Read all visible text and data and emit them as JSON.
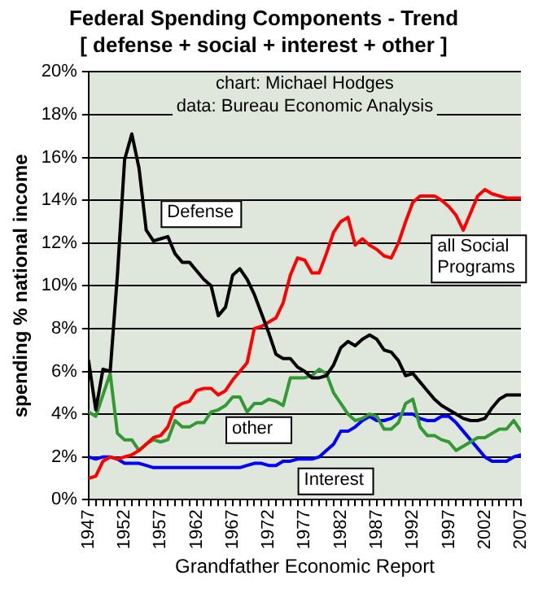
{
  "chart_data": {
    "type": "line",
    "title": "Federal Spending Components - Trend",
    "subtitle": "[ defense + social + interest + other ]",
    "xlabel": "Grandfather Economic Report",
    "ylabel": "spending % national income",
    "annotations": [
      "chart: Michael Hodges",
      "data: Bureau Economic Analysis"
    ],
    "x": [
      1947,
      1948,
      1949,
      1950,
      1951,
      1952,
      1953,
      1954,
      1955,
      1956,
      1957,
      1958,
      1959,
      1960,
      1961,
      1962,
      1963,
      1964,
      1965,
      1966,
      1967,
      1968,
      1969,
      1970,
      1971,
      1972,
      1973,
      1974,
      1975,
      1976,
      1977,
      1978,
      1979,
      1980,
      1981,
      1982,
      1983,
      1984,
      1985,
      1986,
      1987,
      1988,
      1989,
      1990,
      1991,
      1992,
      1993,
      1994,
      1995,
      1996,
      1997,
      1998,
      1999,
      2000,
      2001,
      2002,
      2003,
      2004,
      2005,
      2006,
      2007
    ],
    "series": [
      {
        "name": "Defense",
        "color": "#000000",
        "values": [
          6.5,
          4.2,
          6.1,
          6.0,
          10.5,
          15.9,
          17.1,
          15.5,
          12.6,
          12.1,
          12.2,
          12.3,
          11.5,
          11.1,
          11.1,
          10.7,
          10.3,
          10.0,
          8.6,
          9.0,
          10.5,
          10.8,
          10.3,
          9.6,
          8.7,
          7.8,
          6.8,
          6.6,
          6.6,
          6.2,
          6.0,
          5.7,
          5.7,
          5.8,
          6.3,
          7.1,
          7.4,
          7.2,
          7.5,
          7.7,
          7.5,
          7.0,
          6.9,
          6.5,
          5.8,
          5.9,
          5.5,
          5.1,
          4.7,
          4.4,
          4.2,
          4.0,
          3.8,
          3.7,
          3.7,
          3.8,
          4.3,
          4.7,
          4.9,
          4.9,
          4.9
        ]
      },
      {
        "name": "all Social Programs",
        "color": "#ff0000",
        "values": [
          1.0,
          1.1,
          1.8,
          2.0,
          1.9,
          2.0,
          2.1,
          2.3,
          2.6,
          2.9,
          3.0,
          3.4,
          4.3,
          4.5,
          4.6,
          5.1,
          5.2,
          5.2,
          4.9,
          5.1,
          5.6,
          6.0,
          6.4,
          8.0,
          8.1,
          8.3,
          8.5,
          9.2,
          10.5,
          11.3,
          11.2,
          10.6,
          10.6,
          11.5,
          12.5,
          13.0,
          13.2,
          11.9,
          12.2,
          11.9,
          11.7,
          11.4,
          11.3,
          12.0,
          13.0,
          13.9,
          14.2,
          14.2,
          14.2,
          14.0,
          13.7,
          13.3,
          12.6,
          13.4,
          14.2,
          14.5,
          14.3,
          14.2,
          14.1,
          14.1,
          14.1
        ]
      },
      {
        "name": "other",
        "color": "#339933",
        "values": [
          4.1,
          3.9,
          4.9,
          5.9,
          3.1,
          2.8,
          2.8,
          2.3,
          2.6,
          2.8,
          2.7,
          2.8,
          3.7,
          3.4,
          3.4,
          3.6,
          3.6,
          4.1,
          4.2,
          4.4,
          4.8,
          4.8,
          4.1,
          4.5,
          4.5,
          4.7,
          4.6,
          4.4,
          5.7,
          5.7,
          5.7,
          5.8,
          6.1,
          5.9,
          5.0,
          4.5,
          4.0,
          3.7,
          3.8,
          4.0,
          3.9,
          3.3,
          3.3,
          3.6,
          4.5,
          4.7,
          3.4,
          3.0,
          3.0,
          2.8,
          2.7,
          2.3,
          2.5,
          2.7,
          2.9,
          2.9,
          3.1,
          3.3,
          3.3,
          3.7,
          3.2
        ]
      },
      {
        "name": "Interest",
        "color": "#0000ff",
        "values": [
          2.0,
          1.9,
          2.0,
          2.0,
          1.9,
          1.7,
          1.7,
          1.7,
          1.6,
          1.5,
          1.5,
          1.5,
          1.5,
          1.5,
          1.5,
          1.5,
          1.5,
          1.5,
          1.5,
          1.5,
          1.5,
          1.5,
          1.6,
          1.7,
          1.7,
          1.6,
          1.6,
          1.8,
          1.8,
          1.9,
          1.9,
          1.9,
          2.0,
          2.3,
          2.6,
          3.2,
          3.2,
          3.4,
          3.7,
          3.9,
          3.7,
          3.7,
          3.8,
          4.0,
          4.0,
          4.0,
          3.8,
          3.7,
          3.7,
          3.9,
          3.9,
          3.6,
          3.2,
          2.8,
          2.4,
          2.0,
          1.8,
          1.8,
          1.8,
          2.0,
          2.1
        ]
      }
    ],
    "xlim": [
      1947,
      2007
    ],
    "xticks": [
      1947,
      {
        "value": 1948,
        "label": null
      },
      {
        "value": 1949,
        "label": null
      },
      {
        "value": 1950,
        "label": null
      },
      {
        "value": 1951,
        "label": null
      },
      1952,
      {
        "value": 1953,
        "label": null
      },
      {
        "value": 1954,
        "label": null
      },
      {
        "value": 1955,
        "label": null
      },
      {
        "value": 1956,
        "label": null
      },
      1957,
      {
        "value": 1958,
        "label": null
      },
      {
        "value": 1959,
        "label": null
      },
      {
        "value": 1960,
        "label": null
      },
      {
        "value": 1961,
        "label": null
      },
      1962,
      {
        "value": 1963,
        "label": null
      },
      {
        "value": 1964,
        "label": null
      },
      {
        "value": 1965,
        "label": null
      },
      {
        "value": 1966,
        "label": null
      },
      1967,
      {
        "value": 1968,
        "label": null
      },
      {
        "value": 1969,
        "label": null
      },
      {
        "value": 1970,
        "label": null
      },
      {
        "value": 1971,
        "label": null
      },
      1972,
      {
        "value": 1973,
        "label": null
      },
      {
        "value": 1974,
        "label": null
      },
      {
        "value": 1975,
        "label": null
      },
      {
        "value": 1976,
        "label": null
      },
      1977,
      {
        "value": 1978,
        "label": null
      },
      {
        "value": 1979,
        "label": null
      },
      {
        "value": 1980,
        "label": null
      },
      {
        "value": 1981,
        "label": null
      },
      1982,
      {
        "value": 1983,
        "label": null
      },
      {
        "value": 1984,
        "label": null
      },
      {
        "value": 1985,
        "label": null
      },
      {
        "value": 1986,
        "label": null
      },
      1987,
      {
        "value": 1988,
        "label": null
      },
      {
        "value": 1989,
        "label": null
      },
      {
        "value": 1990,
        "label": null
      },
      {
        "value": 1991,
        "label": null
      },
      1992,
      {
        "value": 1993,
        "label": null
      },
      {
        "value": 1994,
        "label": null
      },
      {
        "value": 1995,
        "label": null
      },
      {
        "value": 1996,
        "label": null
      },
      1997,
      {
        "value": 1998,
        "label": null
      },
      {
        "value": 1999,
        "label": null
      },
      {
        "value": 2000,
        "label": null
      },
      {
        "value": 2001,
        "label": null
      },
      2002,
      {
        "value": 2003,
        "label": null
      },
      {
        "value": 2004,
        "label": null
      },
      {
        "value": 2005,
        "label": null
      },
      {
        "value": 2006,
        "label": null
      },
      2007
    ],
    "ylim": [
      0,
      20
    ],
    "yticks": [
      {
        "value": 0,
        "label": "0%"
      },
      {
        "value": 2,
        "label": "2%"
      },
      {
        "value": 4,
        "label": "4%"
      },
      {
        "value": 6,
        "label": "6%"
      },
      {
        "value": 8,
        "label": "8%"
      },
      {
        "value": 10,
        "label": "10%"
      },
      {
        "value": 12,
        "label": "12%"
      },
      {
        "value": 14,
        "label": "14%"
      },
      {
        "value": 16,
        "label": "16%"
      },
      {
        "value": 18,
        "label": "18%"
      },
      {
        "value": 20,
        "label": "20%"
      }
    ],
    "grid": "y",
    "legend": false,
    "marker": "none",
    "line_style": "solid"
  }
}
